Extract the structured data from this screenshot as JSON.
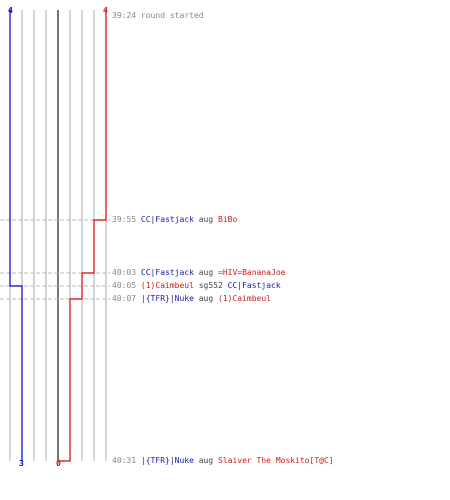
{
  "colors": {
    "team_a": "#0000bb",
    "team_b": "#dd0000",
    "grid": "#aaaaaa",
    "timeline": "#bbbbbb",
    "axis": "#555555"
  },
  "scores": {
    "team_a_top": "4",
    "team_b_top": "4",
    "team_a_bottom": "3",
    "team_b_bottom": "0"
  },
  "events": [
    {
      "time": "39:24",
      "type": "start",
      "text": "round started"
    },
    {
      "time": "39:55",
      "type": "kill",
      "killer": "CC|Fastjack",
      "killer_team": "a",
      "weapon": "aug",
      "victim": "BiBo",
      "victim_team": "b"
    },
    {
      "time": "40:03",
      "type": "kill",
      "killer": "CC|Fastjack",
      "killer_team": "a",
      "weapon": "aug",
      "victim": "=HIV=BananaJoe",
      "victim_team": "b"
    },
    {
      "time": "40:05",
      "type": "kill",
      "killer": "(1)Caimbeul",
      "killer_team": "b",
      "weapon": "sg552",
      "victim": "CC|Fastjack",
      "victim_team": "a"
    },
    {
      "time": "40:07",
      "type": "kill",
      "killer": "|{TFR}|Nuke",
      "killer_team": "a",
      "weapon": "aug",
      "victim": "(1)Caimbeul",
      "victim_team": "b"
    },
    {
      "time": "40:31",
      "type": "kill",
      "killer": "|{TFR}|Nuke",
      "killer_team": "a",
      "weapon": "aug",
      "victim": "Slaiver The Moskito[T@C]",
      "victim_team": "b"
    }
  ]
}
